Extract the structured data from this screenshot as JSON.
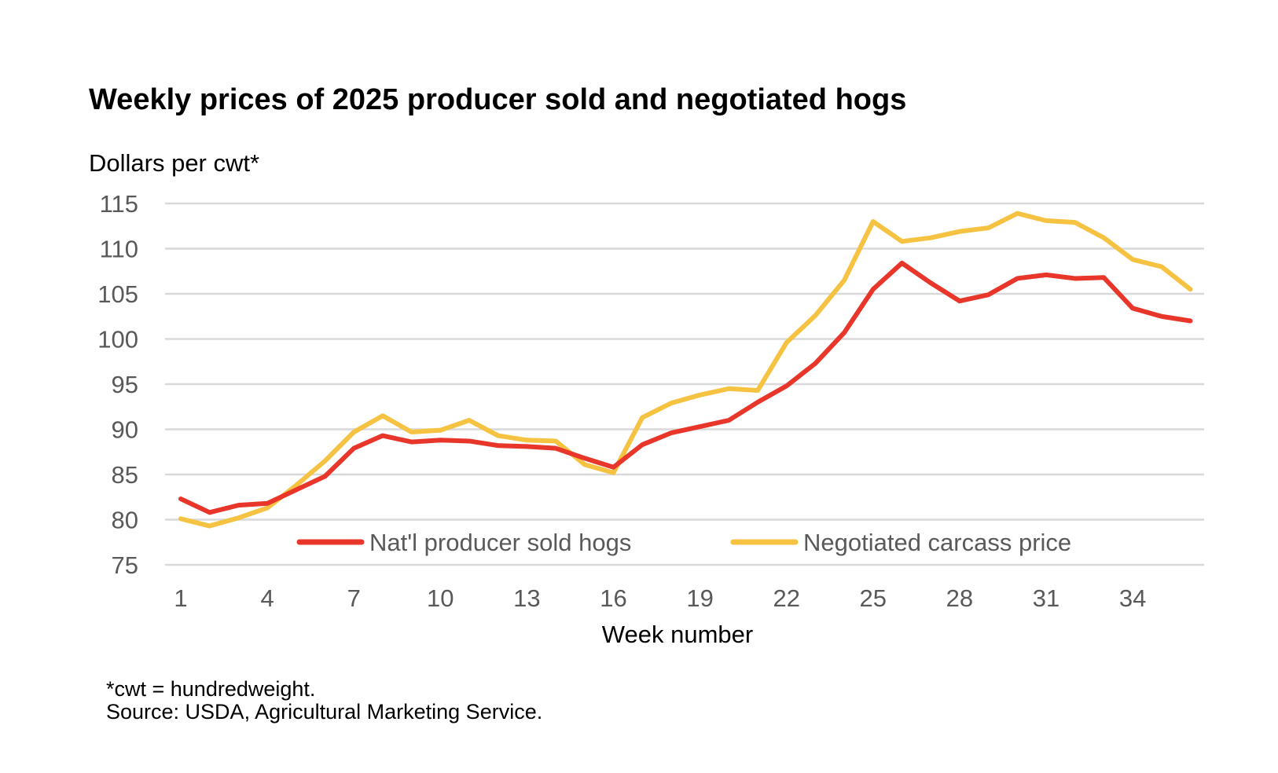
{
  "chart_data": {
    "type": "line",
    "title": "Weekly prices of 2025 producer sold and negotiated hogs",
    "ylabel": "Dollars per cwt*",
    "xlabel": "Week number",
    "ylim": [
      75,
      115
    ],
    "yticks": [
      75,
      80,
      85,
      90,
      95,
      100,
      105,
      110,
      115
    ],
    "xticks": [
      1,
      4,
      7,
      10,
      13,
      16,
      19,
      22,
      25,
      28,
      31,
      34
    ],
    "grid": true,
    "legend_position": "bottom-inside",
    "x": [
      1,
      2,
      3,
      4,
      5,
      6,
      7,
      8,
      9,
      10,
      11,
      12,
      13,
      14,
      15,
      16,
      17,
      18,
      19,
      20,
      21,
      22,
      23,
      24,
      25,
      26,
      27,
      28,
      29,
      30,
      31,
      32,
      33,
      34,
      35,
      36
    ],
    "series": [
      {
        "name": "Nat'l producer sold hogs",
        "color": "#e8372a",
        "values": [
          82.3,
          80.8,
          81.6,
          81.8,
          83.3,
          84.8,
          87.9,
          89.3,
          88.6,
          88.8,
          88.7,
          88.2,
          88.1,
          87.9,
          86.8,
          85.8,
          88.3,
          89.6,
          90.3,
          91.0,
          93.0,
          94.8,
          97.3,
          100.7,
          105.5,
          108.4,
          106.2,
          104.2,
          104.9,
          106.7,
          107.1,
          106.7,
          106.8,
          103.4,
          102.5,
          102.0
        ]
      },
      {
        "name": "Negotiated carcass price",
        "color": "#f5c242",
        "values": [
          80.1,
          79.3,
          80.2,
          81.3,
          83.8,
          86.5,
          89.7,
          91.5,
          89.7,
          89.9,
          91.0,
          89.3,
          88.8,
          88.7,
          86.1,
          85.2,
          91.3,
          92.9,
          93.8,
          94.5,
          94.3,
          99.6,
          102.6,
          106.5,
          113.0,
          110.8,
          111.2,
          111.9,
          112.3,
          113.9,
          113.1,
          112.9,
          111.2,
          108.8,
          108.0,
          105.5
        ]
      }
    ],
    "footnotes": [
      "*cwt = hundredweight.",
      "Source: USDA, Agricultural Marketing Service."
    ]
  }
}
